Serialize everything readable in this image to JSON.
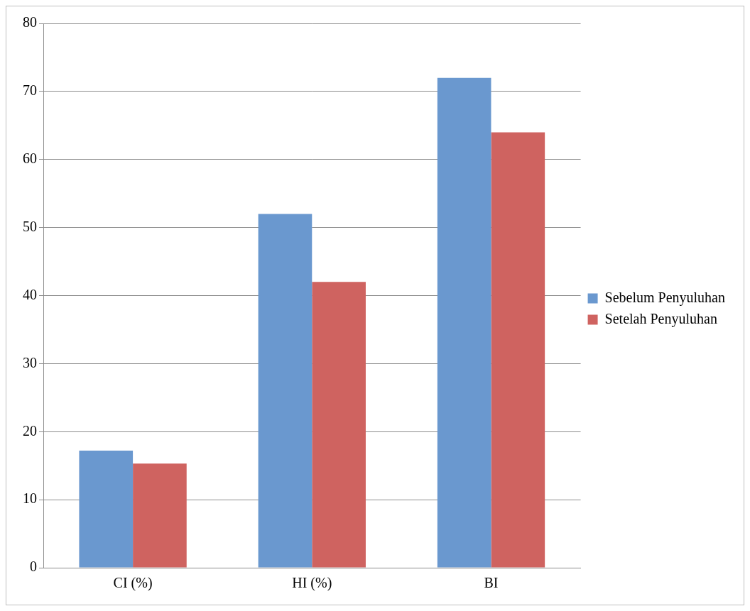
{
  "chart_data": {
    "type": "bar",
    "categories": [
      "CI (%)",
      "HI (%)",
      "BI"
    ],
    "series": [
      {
        "name": "Sebelum Penyuluhan",
        "color": "#6a98cf",
        "values": [
          17.2,
          52,
          72
        ]
      },
      {
        "name": "Setelah Penyuluhan",
        "color": "#cf6360",
        "values": [
          15.3,
          42,
          64
        ]
      }
    ],
    "ylim": [
      0,
      80
    ],
    "yticks": [
      0,
      10,
      20,
      30,
      40,
      50,
      60,
      70,
      80
    ],
    "grid": true,
    "legend": "right"
  }
}
